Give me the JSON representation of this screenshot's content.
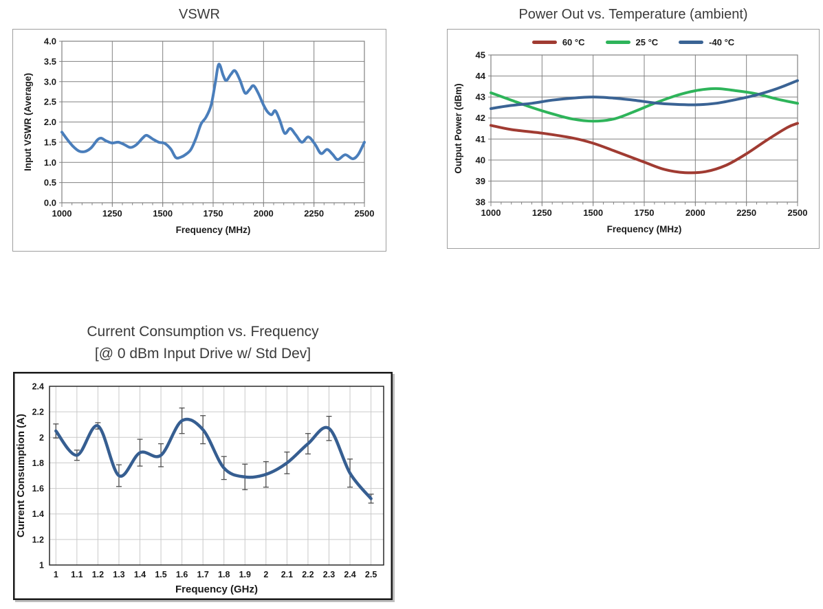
{
  "colors": {
    "title_text": "#3A3A3A",
    "background": "#FFFFFF"
  },
  "chart_data": [
    {
      "type": "line",
      "title": "VSWR",
      "xlabel": "Frequency (MHz)",
      "ylabel": "Input VSWR (Average)",
      "xlim": [
        1000,
        2500
      ],
      "ylim": [
        0,
        4
      ],
      "xtick_values": [
        1000,
        1250,
        1500,
        1750,
        2000,
        2250,
        2500
      ],
      "xtick_labels": [
        "1000",
        "1250",
        "1500",
        "1750",
        "2000",
        "2250",
        "2500"
      ],
      "ytick_values": [
        0,
        0.5,
        1,
        1.5,
        2,
        2.5,
        3,
        3.5,
        4
      ],
      "ytick_labels": [
        "0.0",
        "0.5",
        "1.0",
        "1.5",
        "2.0",
        "2.5",
        "3.0",
        "3.5",
        "4.0"
      ],
      "x_gridlines": [
        1250,
        1500,
        1750,
        2000,
        2250
      ],
      "y_gridlines": [
        0.5,
        1,
        1.5,
        2,
        2.5,
        3,
        3.5
      ],
      "x_minor_tick_step": 50,
      "grid": true,
      "legend_position": "none",
      "colors": {
        "frame": "#9E9E9E",
        "grid": "#808080",
        "plot_border": "#808080",
        "text": "#1A1A1A"
      },
      "series": [
        {
          "name": "Input VSWR",
          "slug": "vswr",
          "color": "#4A7EBB",
          "width": 4,
          "x": [
            1000,
            1025,
            1055,
            1085,
            1115,
            1145,
            1175,
            1195,
            1220,
            1250,
            1280,
            1310,
            1340,
            1370,
            1400,
            1420,
            1450,
            1480,
            1510,
            1540,
            1565,
            1590,
            1615,
            1640,
            1665,
            1690,
            1715,
            1740,
            1760,
            1778,
            1800,
            1815,
            1838,
            1858,
            1882,
            1908,
            1930,
            1950,
            1975,
            2000,
            2020,
            2040,
            2058,
            2080,
            2105,
            2132,
            2160,
            2190,
            2222,
            2255,
            2285,
            2315,
            2342,
            2368,
            2405,
            2442,
            2470,
            2500
          ],
          "y": [
            1.75,
            1.58,
            1.4,
            1.28,
            1.27,
            1.36,
            1.55,
            1.6,
            1.53,
            1.48,
            1.5,
            1.44,
            1.37,
            1.44,
            1.6,
            1.67,
            1.58,
            1.5,
            1.47,
            1.33,
            1.12,
            1.13,
            1.2,
            1.32,
            1.6,
            1.95,
            2.12,
            2.42,
            2.95,
            3.43,
            3.15,
            3.03,
            3.18,
            3.27,
            3.05,
            2.72,
            2.8,
            2.9,
            2.7,
            2.42,
            2.25,
            2.18,
            2.28,
            2.05,
            1.72,
            1.84,
            1.68,
            1.5,
            1.63,
            1.45,
            1.22,
            1.32,
            1.2,
            1.07,
            1.19,
            1.09,
            1.2,
            1.5
          ]
        }
      ]
    },
    {
      "type": "line",
      "title": "Power Out vs. Temperature (ambient)",
      "xlabel": "Frequency (MHz)",
      "ylabel": "Output Power (dBm)",
      "xlim": [
        1000,
        2500
      ],
      "ylim": [
        38,
        45
      ],
      "xtick_values": [
        1000,
        1250,
        1500,
        1750,
        2000,
        2250,
        2500
      ],
      "xtick_labels": [
        "1000",
        "1250",
        "1500",
        "1750",
        "2000",
        "2250",
        "2500"
      ],
      "ytick_values": [
        38,
        39,
        40,
        41,
        42,
        43,
        44,
        45
      ],
      "ytick_labels": [
        "38",
        "39",
        "40",
        "41",
        "42",
        "43",
        "44",
        "45"
      ],
      "x_gridlines": [
        1250,
        1500,
        1750,
        2000,
        2250
      ],
      "y_gridlines": [
        39,
        40,
        41,
        42,
        43,
        44
      ],
      "x_minor_tick_step": 50,
      "grid": true,
      "legend_position": "top",
      "colors": {
        "frame": "#9E9E9E",
        "grid": "#808080",
        "plot_border": "#808080",
        "text": "#1A1A1A"
      },
      "series": [
        {
          "name": "60  °C",
          "slug": "60c",
          "color": "#A03B32",
          "width": 4,
          "x": [
            1000,
            1100,
            1250,
            1400,
            1500,
            1600,
            1750,
            1850,
            1950,
            2050,
            2150,
            2250,
            2350,
            2450,
            2500
          ],
          "y": [
            41.65,
            41.45,
            41.28,
            41.05,
            40.8,
            40.45,
            39.9,
            39.55,
            39.4,
            39.45,
            39.75,
            40.3,
            40.95,
            41.55,
            41.75
          ]
        },
        {
          "name": "25  °C",
          "slug": "25c",
          "color": "#2EB45A",
          "width": 4,
          "x": [
            1000,
            1100,
            1200,
            1300,
            1400,
            1500,
            1600,
            1700,
            1800,
            1900,
            2000,
            2100,
            2200,
            2300,
            2400,
            2500
          ],
          "y": [
            43.2,
            42.85,
            42.5,
            42.2,
            41.95,
            41.85,
            41.95,
            42.3,
            42.7,
            43.05,
            43.3,
            43.4,
            43.3,
            43.15,
            42.9,
            42.7
          ]
        },
        {
          "name": "-40 °C",
          "slug": "minus40c",
          "color": "#3A6394",
          "width": 4,
          "x": [
            1000,
            1100,
            1200,
            1300,
            1400,
            1500,
            1600,
            1700,
            1800,
            1900,
            2000,
            2100,
            2200,
            2300,
            2400,
            2500
          ],
          "y": [
            42.45,
            42.6,
            42.7,
            42.85,
            42.95,
            43.0,
            42.95,
            42.85,
            42.72,
            42.65,
            42.63,
            42.7,
            42.88,
            43.1,
            43.4,
            43.78
          ]
        }
      ]
    },
    {
      "type": "line",
      "title": "Current Consumption vs. Frequency",
      "subtitle": "[@ 0 dBm Input Drive w/ Std Dev]",
      "xlabel": "Frequency (GHz)",
      "ylabel": "Current Consumption (A)",
      "xlim": [
        1,
        2.5
      ],
      "ylim": [
        1,
        2.4
      ],
      "xtick_values": [
        1,
        1.1,
        1.2,
        1.3,
        1.4,
        1.5,
        1.6,
        1.7,
        1.8,
        1.9,
        2,
        2.1,
        2.2,
        2.3,
        2.4,
        2.5
      ],
      "xtick_labels": [
        "1",
        "1.1",
        "1.2",
        "1.3",
        "1.4",
        "1.5",
        "1.6",
        "1.7",
        "1.8",
        "1.9",
        "2",
        "2.1",
        "2.2",
        "2.3",
        "2.4",
        "2.5"
      ],
      "ytick_values": [
        1,
        1.2,
        1.4,
        1.6,
        1.8,
        2,
        2.2,
        2.4
      ],
      "ytick_labels": [
        "1",
        "1.2",
        "1.4",
        "1.6",
        "1.8",
        "2",
        "2.2",
        "2.4"
      ],
      "x_gridlines": [
        1,
        1.1,
        1.2,
        1.3,
        1.4,
        1.5,
        1.6,
        1.7,
        1.8,
        1.9,
        2,
        2.1,
        2.2,
        2.3,
        2.4,
        2.5
      ],
      "y_gridlines": [
        1.2,
        1.4,
        1.6,
        1.8,
        2,
        2.2
      ],
      "x_minor_tick_step": 0,
      "grid": true,
      "legend_position": "none",
      "colors": {
        "frame": "#1A1A1A",
        "grid": "#C9C9C9",
        "plot_border": "#1A1A1A",
        "text": "#1A1A1A",
        "error": "#4D4D4D"
      },
      "series": [
        {
          "name": "Current Consumption",
          "slug": "current",
          "color": "#365E91",
          "width": 4.5,
          "x": [
            1,
            1.1,
            1.2,
            1.3,
            1.4,
            1.5,
            1.6,
            1.7,
            1.8,
            1.9,
            2,
            2.1,
            2.2,
            2.3,
            2.4,
            2.5
          ],
          "y": [
            2.05,
            1.86,
            2.09,
            1.7,
            1.88,
            1.86,
            2.13,
            2.06,
            1.76,
            1.69,
            1.71,
            1.8,
            1.95,
            2.07,
            1.72,
            1.52
          ],
          "y_err": [
            0.055,
            0.04,
            0.025,
            0.085,
            0.105,
            0.09,
            0.1,
            0.11,
            0.09,
            0.1,
            0.1,
            0.085,
            0.08,
            0.095,
            0.11,
            0.035
          ]
        }
      ]
    }
  ]
}
